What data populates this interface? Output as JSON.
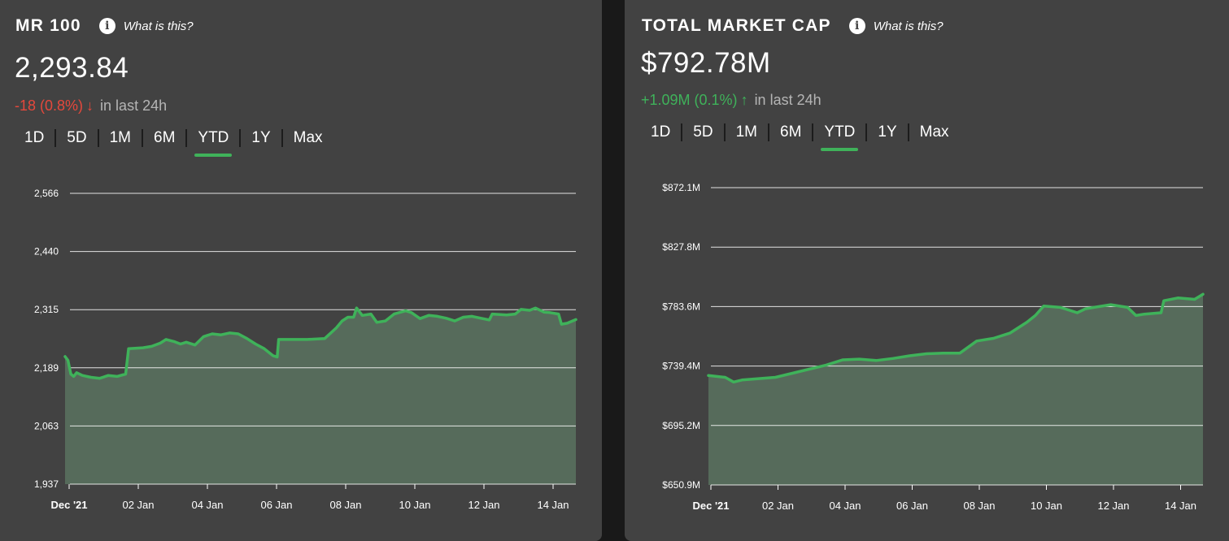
{
  "left": {
    "title": "MR 100",
    "info_icon": "info-circle-icon",
    "what_label": "What is this?",
    "value": "2,293.84",
    "change": "-18 (0.8%)",
    "change_direction": "down",
    "change_suffix": "in last 24h",
    "tabs": [
      "1D",
      "5D",
      "1M",
      "6M",
      "YTD",
      "1Y",
      "Max"
    ],
    "active_tab": "YTD"
  },
  "right": {
    "title": "TOTAL MARKET CAP",
    "info_icon": "info-circle-icon",
    "what_label": "What is this?",
    "value": "$792.78M",
    "change": "+1.09M (0.1%)",
    "change_direction": "up",
    "change_suffix": "in last 24h",
    "tabs": [
      "1D",
      "5D",
      "1M",
      "6M",
      "YTD",
      "1Y",
      "Max"
    ],
    "active_tab": "YTD"
  },
  "colors": {
    "panel_bg": "#424242",
    "line": "#3fb25a",
    "area": "#566b5b",
    "negative": "#e5483c",
    "positive": "#3fb25a",
    "grid": "#ffffff"
  },
  "chart_data": [
    {
      "type": "area",
      "series": [
        {
          "points": [
            [
              "2021-12-31T00",
              2213
            ],
            [
              "2021-12-31T02",
              2205
            ],
            [
              "2021-12-31T04",
              2175
            ],
            [
              "2021-12-31T06",
              2170
            ],
            [
              "2021-12-31T08",
              2178
            ],
            [
              "2021-12-31T12",
              2172
            ],
            [
              "2021-12-31T18",
              2168
            ],
            [
              "2022-01-01T00",
              2166
            ],
            [
              "2022-01-01T06",
              2172
            ],
            [
              "2022-01-01T12",
              2170
            ],
            [
              "2022-01-01T18",
              2175
            ],
            [
              "2022-01-01T20",
              2230
            ],
            [
              "2022-01-02T06",
              2232
            ],
            [
              "2022-01-02T12",
              2235
            ],
            [
              "2022-01-02T18",
              2242
            ],
            [
              "2022-01-02T22",
              2250
            ],
            [
              "2022-01-03T04",
              2245
            ],
            [
              "2022-01-03T08",
              2240
            ],
            [
              "2022-01-03T12",
              2244
            ],
            [
              "2022-01-03T18",
              2238
            ],
            [
              "2022-01-04T00",
              2256
            ],
            [
              "2022-01-04T06",
              2262
            ],
            [
              "2022-01-04T12",
              2260
            ],
            [
              "2022-01-04T18",
              2264
            ],
            [
              "2022-01-05T00",
              2262
            ],
            [
              "2022-01-05T06",
              2252
            ],
            [
              "2022-01-05T12",
              2240
            ],
            [
              "2022-01-05T18",
              2230
            ],
            [
              "2022-01-06T00",
              2215
            ],
            [
              "2022-01-06T03",
              2212
            ],
            [
              "2022-01-06T04",
              2250
            ],
            [
              "2022-01-06T12",
              2250
            ],
            [
              "2022-01-07T00",
              2250
            ],
            [
              "2022-01-07T12",
              2252
            ],
            [
              "2022-01-07T20",
              2275
            ],
            [
              "2022-01-08T00",
              2290
            ],
            [
              "2022-01-08T04",
              2298
            ],
            [
              "2022-01-08T08",
              2298
            ],
            [
              "2022-01-08T10",
              2318
            ],
            [
              "2022-01-08T14",
              2302
            ],
            [
              "2022-01-08T20",
              2305
            ],
            [
              "2022-01-09T00",
              2287
            ],
            [
              "2022-01-09T06",
              2290
            ],
            [
              "2022-01-09T12",
              2305
            ],
            [
              "2022-01-09T20",
              2312
            ],
            [
              "2022-01-10T00",
              2308
            ],
            [
              "2022-01-10T06",
              2295
            ],
            [
              "2022-01-10T12",
              2302
            ],
            [
              "2022-01-10T18",
              2300
            ],
            [
              "2022-01-11T00",
              2296
            ],
            [
              "2022-01-11T06",
              2290
            ],
            [
              "2022-01-11T12",
              2298
            ],
            [
              "2022-01-11T18",
              2300
            ],
            [
              "2022-01-12T00",
              2296
            ],
            [
              "2022-01-12T06",
              2292
            ],
            [
              "2022-01-12T08",
              2305
            ],
            [
              "2022-01-12T18",
              2303
            ],
            [
              "2022-01-13T00",
              2305
            ],
            [
              "2022-01-13T04",
              2315
            ],
            [
              "2022-01-13T10",
              2313
            ],
            [
              "2022-01-13T14",
              2318
            ],
            [
              "2022-01-13T20",
              2309
            ],
            [
              "2022-01-14T00",
              2308
            ],
            [
              "2022-01-14T06",
              2305
            ],
            [
              "2022-01-14T08",
              2283
            ],
            [
              "2022-01-14T12",
              2285
            ],
            [
              "2022-01-14T18",
              2293
            ]
          ]
        }
      ],
      "y_ticks": [
        "2,566",
        "2,440",
        "2,315",
        "2,189",
        "2,063",
        "1,937"
      ],
      "ylim": [
        1937,
        2566
      ],
      "x_ticks": [
        "Dec '21",
        "02 Jan",
        "04 Jan",
        "06 Jan",
        "08 Jan",
        "10 Jan",
        "12 Jan",
        "14 Jan"
      ],
      "xlim": [
        "2021-12-31T00",
        "2022-01-14T18"
      ],
      "grid": "horizontal"
    },
    {
      "type": "area",
      "series": [
        {
          "points": [
            [
              "2021-12-31T00",
              732.3
            ],
            [
              "2021-12-31T12",
              731
            ],
            [
              "2021-12-31T18",
              727.5
            ],
            [
              "2022-01-01T00",
              729
            ],
            [
              "2022-01-01T12",
              730
            ],
            [
              "2022-01-02T00",
              731
            ],
            [
              "2022-01-02T12",
              734
            ],
            [
              "2022-01-03T00",
              737
            ],
            [
              "2022-01-03T12",
              740
            ],
            [
              "2022-01-04T00",
              744
            ],
            [
              "2022-01-04T12",
              744.5
            ],
            [
              "2022-01-05T00",
              743.5
            ],
            [
              "2022-01-05T12",
              745
            ],
            [
              "2022-01-06T00",
              747
            ],
            [
              "2022-01-06T12",
              748.5
            ],
            [
              "2022-01-07T00",
              749
            ],
            [
              "2022-01-07T12",
              749
            ],
            [
              "2022-01-08T00",
              758
            ],
            [
              "2022-01-08T12",
              760
            ],
            [
              "2022-01-09T00",
              764
            ],
            [
              "2022-01-09T12",
              772
            ],
            [
              "2022-01-09T18",
              777
            ],
            [
              "2022-01-10T00",
              784
            ],
            [
              "2022-01-10T12",
              783
            ],
            [
              "2022-01-11T00",
              779
            ],
            [
              "2022-01-11T06",
              782
            ],
            [
              "2022-01-11T12",
              783
            ],
            [
              "2022-01-12T00",
              785
            ],
            [
              "2022-01-12T12",
              783
            ],
            [
              "2022-01-12T18",
              777
            ],
            [
              "2022-01-13T00",
              778
            ],
            [
              "2022-01-13T12",
              779
            ],
            [
              "2022-01-13T14",
              788
            ],
            [
              "2022-01-14T00",
              790
            ],
            [
              "2022-01-14T12",
              789
            ],
            [
              "2022-01-14T18",
              792.78
            ]
          ]
        }
      ],
      "y_ticks": [
        "$872.1M",
        "$827.8M",
        "$783.6M",
        "$739.4M",
        "$695.2M",
        "$650.9M"
      ],
      "ylim": [
        650.9,
        872.1
      ],
      "x_ticks": [
        "Dec '21",
        "02 Jan",
        "04 Jan",
        "06 Jan",
        "08 Jan",
        "10 Jan",
        "12 Jan",
        "14 Jan"
      ],
      "xlim": [
        "2021-12-31T00",
        "2022-01-14T18"
      ],
      "grid": "horizontal"
    }
  ]
}
